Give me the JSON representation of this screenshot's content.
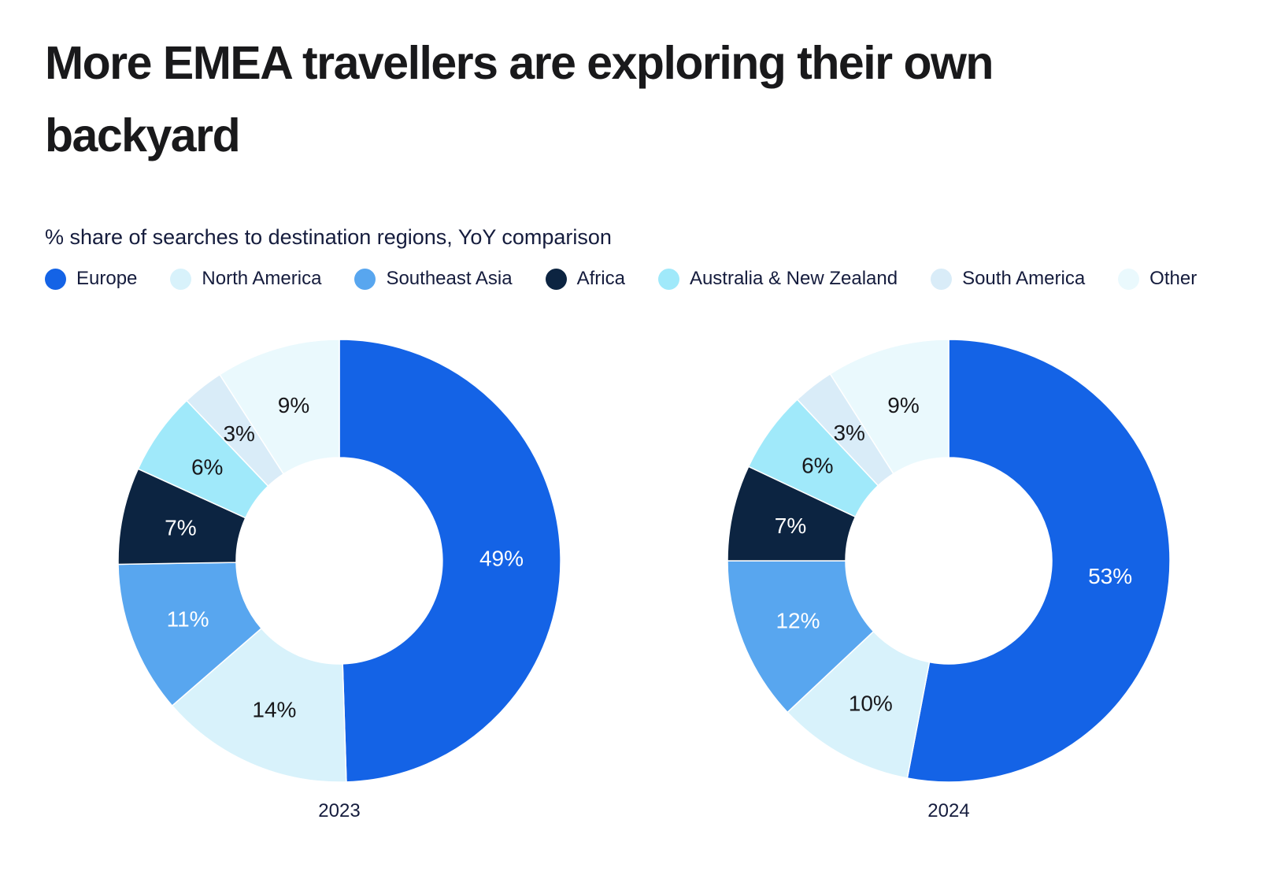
{
  "header": {
    "title": "More EMEA travellers are exploring their own backyard",
    "subtitle": "% share of searches to destination regions, YoY comparison"
  },
  "legend": {
    "items": [
      {
        "label": "Europe",
        "color": "#1463e6"
      },
      {
        "label": "North America",
        "color": "#d8f2fb"
      },
      {
        "label": "Southeast Asia",
        "color": "#58a6ef"
      },
      {
        "label": "Africa",
        "color": "#0c2441"
      },
      {
        "label": "Australia & New Zealand",
        "color": "#a0e9fa"
      },
      {
        "label": "South America",
        "color": "#d9ecf8"
      },
      {
        "label": "Other",
        "color": "#eaf9fd"
      }
    ]
  },
  "chart_data": [
    {
      "type": "pie",
      "subtype": "donut",
      "title": "2023",
      "categories": [
        "Europe",
        "North America",
        "Southeast Asia",
        "Africa",
        "Australia & New Zealand",
        "South America",
        "Other"
      ],
      "values": [
        49,
        14,
        11,
        7,
        6,
        3,
        9
      ],
      "unit": "%",
      "colors": [
        "#1463e6",
        "#d8f2fb",
        "#58a6ef",
        "#0c2441",
        "#a0e9fa",
        "#d9ecf8",
        "#eaf9fd"
      ],
      "label_colors": [
        "#ffffff",
        "#18181b",
        "#ffffff",
        "#ffffff",
        "#18181b",
        "#18181b",
        "#18181b"
      ],
      "start_angle_deg": 0,
      "direction": "clockwise",
      "inner_radius_ratio": 0.465,
      "legend_position": "top"
    },
    {
      "type": "pie",
      "subtype": "donut",
      "title": "2024",
      "categories": [
        "Europe",
        "North America",
        "Southeast Asia",
        "Africa",
        "Australia & New Zealand",
        "South America",
        "Other"
      ],
      "values": [
        53,
        10,
        12,
        7,
        6,
        3,
        9
      ],
      "unit": "%",
      "colors": [
        "#1463e6",
        "#d8f2fb",
        "#58a6ef",
        "#0c2441",
        "#a0e9fa",
        "#d9ecf8",
        "#eaf9fd"
      ],
      "label_colors": [
        "#ffffff",
        "#18181b",
        "#ffffff",
        "#ffffff",
        "#18181b",
        "#18181b",
        "#18181b"
      ],
      "start_angle_deg": 0,
      "direction": "clockwise",
      "inner_radius_ratio": 0.465,
      "legend_position": "top"
    }
  ]
}
